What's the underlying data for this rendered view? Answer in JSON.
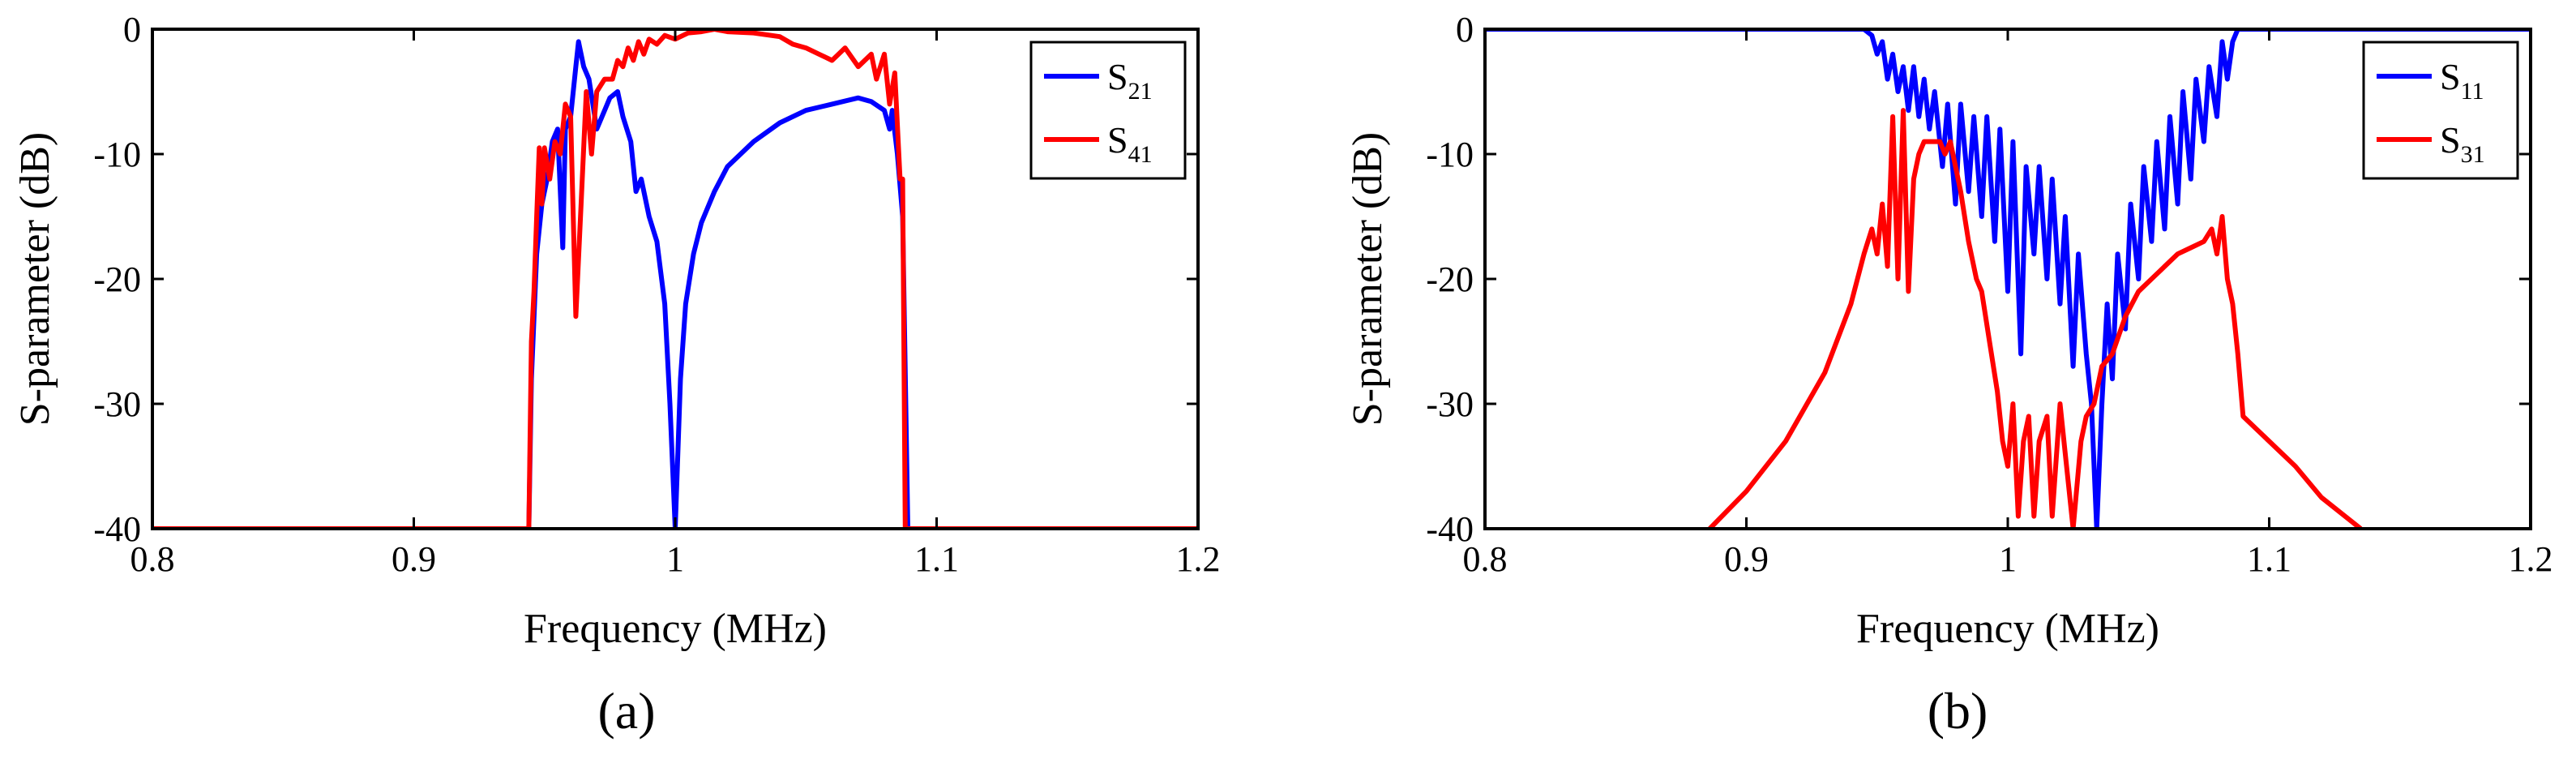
{
  "chart_data": [
    {
      "panel_label": "(a)",
      "type": "line",
      "xlabel": "Frequency (MHz)",
      "ylabel": "S-parameter (dB)",
      "xlim": [
        0.8,
        1.2
      ],
      "ylim": [
        -40,
        0
      ],
      "xticks": [
        "0.8",
        "0.9",
        "1",
        "1.1",
        "1.2"
      ],
      "yticks": [
        "0",
        "-10",
        "-20",
        "-30",
        "-40"
      ],
      "legend_position": "top-right",
      "grid": false,
      "series": [
        {
          "name": "S21",
          "name_base": "S",
          "name_sub": "21",
          "color": "#0000ff",
          "points": [
            [
              0.8,
              -40
            ],
            [
              0.944,
              -40
            ],
            [
              0.945,
              -28
            ],
            [
              0.947,
              -18
            ],
            [
              0.949,
              -14
            ],
            [
              0.951,
              -12
            ],
            [
              0.953,
              -9
            ],
            [
              0.955,
              -8
            ],
            [
              0.957,
              -17.5
            ],
            [
              0.958,
              -8
            ],
            [
              0.96,
              -7
            ],
            [
              0.962,
              -3
            ],
            [
              0.963,
              -1
            ],
            [
              0.965,
              -3
            ],
            [
              0.967,
              -4
            ],
            [
              0.97,
              -8
            ],
            [
              0.972,
              -7
            ],
            [
              0.975,
              -5.5
            ],
            [
              0.978,
              -5
            ],
            [
              0.98,
              -7
            ],
            [
              0.983,
              -9
            ],
            [
              0.985,
              -13
            ],
            [
              0.987,
              -12
            ],
            [
              0.99,
              -15
            ],
            [
              0.993,
              -17
            ],
            [
              0.996,
              -22
            ],
            [
              0.998,
              -30
            ],
            [
              1.0,
              -40
            ],
            [
              1.002,
              -28
            ],
            [
              1.004,
              -22
            ],
            [
              1.007,
              -18
            ],
            [
              1.01,
              -15.5
            ],
            [
              1.015,
              -13
            ],
            [
              1.02,
              -11
            ],
            [
              1.03,
              -9
            ],
            [
              1.04,
              -7.5
            ],
            [
              1.05,
              -6.5
            ],
            [
              1.06,
              -6
            ],
            [
              1.07,
              -5.5
            ],
            [
              1.075,
              -5.8
            ],
            [
              1.08,
              -6.5
            ],
            [
              1.082,
              -8
            ],
            [
              1.083,
              -6.5
            ],
            [
              1.085,
              -10
            ],
            [
              1.087,
              -15
            ],
            [
              1.089,
              -40
            ],
            [
              1.2,
              -40
            ]
          ]
        },
        {
          "name": "S41",
          "name_base": "S",
          "name_sub": "41",
          "color": "#ff0000",
          "points": [
            [
              0.8,
              -40
            ],
            [
              0.944,
              -40
            ],
            [
              0.945,
              -25
            ],
            [
              0.946,
              -21
            ],
            [
              0.947,
              -15
            ],
            [
              0.948,
              -9.5
            ],
            [
              0.949,
              -14
            ],
            [
              0.95,
              -9.5
            ],
            [
              0.952,
              -12
            ],
            [
              0.954,
              -9
            ],
            [
              0.956,
              -10
            ],
            [
              0.958,
              -6
            ],
            [
              0.96,
              -7
            ],
            [
              0.962,
              -23
            ],
            [
              0.964,
              -14
            ],
            [
              0.966,
              -5
            ],
            [
              0.968,
              -10
            ],
            [
              0.97,
              -5
            ],
            [
              0.973,
              -4
            ],
            [
              0.976,
              -4
            ],
            [
              0.978,
              -2.5
            ],
            [
              0.98,
              -3
            ],
            [
              0.982,
              -1.5
            ],
            [
              0.984,
              -2.5
            ],
            [
              0.986,
              -1
            ],
            [
              0.988,
              -2
            ],
            [
              0.99,
              -0.8
            ],
            [
              0.993,
              -1.2
            ],
            [
              0.996,
              -0.5
            ],
            [
              1.0,
              -0.8
            ],
            [
              1.005,
              -0.3
            ],
            [
              1.01,
              -0.2
            ],
            [
              1.015,
              0
            ],
            [
              1.02,
              -0.2
            ],
            [
              1.03,
              -0.3
            ],
            [
              1.04,
              -0.6
            ],
            [
              1.045,
              -1.2
            ],
            [
              1.05,
              -1.5
            ],
            [
              1.055,
              -2
            ],
            [
              1.06,
              -2.5
            ],
            [
              1.065,
              -1.5
            ],
            [
              1.07,
              -3
            ],
            [
              1.075,
              -2
            ],
            [
              1.077,
              -4
            ],
            [
              1.08,
              -2
            ],
            [
              1.082,
              -6
            ],
            [
              1.084,
              -3.5
            ],
            [
              1.086,
              -12
            ],
            [
              1.087,
              -12
            ],
            [
              1.088,
              -40
            ],
            [
              1.2,
              -40
            ]
          ]
        }
      ]
    },
    {
      "panel_label": "(b)",
      "type": "line",
      "xlabel": "Frequency (MHz)",
      "ylabel": "S-parameter (dB)",
      "xlim": [
        0.8,
        1.2
      ],
      "ylim": [
        -40,
        0
      ],
      "xticks": [
        "0.8",
        "0.9",
        "1",
        "1.1",
        "1.2"
      ],
      "yticks": [
        "0",
        "-10",
        "-20",
        "-30",
        "-40"
      ],
      "legend_position": "top-right",
      "grid": false,
      "series": [
        {
          "name": "S11",
          "name_base": "S",
          "name_sub": "11",
          "color": "#0000ff",
          "points": [
            [
              0.8,
              0
            ],
            [
              0.945,
              0
            ],
            [
              0.948,
              -0.5
            ],
            [
              0.95,
              -2
            ],
            [
              0.952,
              -1
            ],
            [
              0.954,
              -4
            ],
            [
              0.956,
              -2
            ],
            [
              0.958,
              -5
            ],
            [
              0.96,
              -3
            ],
            [
              0.962,
              -6.5
            ],
            [
              0.964,
              -3
            ],
            [
              0.966,
              -7
            ],
            [
              0.968,
              -4
            ],
            [
              0.97,
              -8
            ],
            [
              0.972,
              -5
            ],
            [
              0.975,
              -11
            ],
            [
              0.977,
              -6
            ],
            [
              0.98,
              -14
            ],
            [
              0.982,
              -6
            ],
            [
              0.985,
              -13
            ],
            [
              0.987,
              -7
            ],
            [
              0.99,
              -15
            ],
            [
              0.992,
              -7
            ],
            [
              0.995,
              -17
            ],
            [
              0.997,
              -8
            ],
            [
              1.0,
              -21
            ],
            [
              1.002,
              -9
            ],
            [
              1.005,
              -26
            ],
            [
              1.007,
              -11
            ],
            [
              1.01,
              -18
            ],
            [
              1.012,
              -11
            ],
            [
              1.015,
              -20
            ],
            [
              1.017,
              -12
            ],
            [
              1.02,
              -22
            ],
            [
              1.022,
              -15
            ],
            [
              1.025,
              -27
            ],
            [
              1.027,
              -18
            ],
            [
              1.03,
              -26
            ],
            [
              1.032,
              -30
            ],
            [
              1.034,
              -40
            ],
            [
              1.036,
              -30
            ],
            [
              1.038,
              -22
            ],
            [
              1.04,
              -28
            ],
            [
              1.042,
              -18
            ],
            [
              1.045,
              -24
            ],
            [
              1.047,
              -14
            ],
            [
              1.05,
              -20
            ],
            [
              1.052,
              -11
            ],
            [
              1.055,
              -17
            ],
            [
              1.057,
              -9
            ],
            [
              1.06,
              -16
            ],
            [
              1.062,
              -7
            ],
            [
              1.065,
              -14
            ],
            [
              1.067,
              -5
            ],
            [
              1.07,
              -12
            ],
            [
              1.072,
              -4
            ],
            [
              1.075,
              -9
            ],
            [
              1.077,
              -3
            ],
            [
              1.08,
              -7
            ],
            [
              1.082,
              -1
            ],
            [
              1.084,
              -4
            ],
            [
              1.086,
              -1
            ],
            [
              1.088,
              0
            ],
            [
              1.2,
              0
            ]
          ]
        },
        {
          "name": "S31",
          "name_base": "S",
          "name_sub": "31",
          "color": "#ff0000",
          "points": [
            [
              0.886,
              -40
            ],
            [
              0.9,
              -37
            ],
            [
              0.915,
              -33
            ],
            [
              0.93,
              -27.5
            ],
            [
              0.94,
              -22
            ],
            [
              0.945,
              -18
            ],
            [
              0.948,
              -16
            ],
            [
              0.95,
              -18
            ],
            [
              0.952,
              -14
            ],
            [
              0.954,
              -19
            ],
            [
              0.956,
              -7
            ],
            [
              0.958,
              -20
            ],
            [
              0.96,
              -6.5
            ],
            [
              0.962,
              -21
            ],
            [
              0.964,
              -12
            ],
            [
              0.966,
              -10
            ],
            [
              0.968,
              -9
            ],
            [
              0.97,
              -9
            ],
            [
              0.972,
              -9
            ],
            [
              0.974,
              -9
            ],
            [
              0.976,
              -10
            ],
            [
              0.978,
              -9
            ],
            [
              0.98,
              -11
            ],
            [
              0.982,
              -13
            ],
            [
              0.985,
              -17
            ],
            [
              0.988,
              -20
            ],
            [
              0.99,
              -21
            ],
            [
              0.993,
              -25
            ],
            [
              0.996,
              -29
            ],
            [
              0.998,
              -33
            ],
            [
              1.0,
              -35
            ],
            [
              1.002,
              -30
            ],
            [
              1.004,
              -39
            ],
            [
              1.006,
              -33
            ],
            [
              1.008,
              -31
            ],
            [
              1.01,
              -39
            ],
            [
              1.012,
              -33
            ],
            [
              1.015,
              -31
            ],
            [
              1.017,
              -39
            ],
            [
              1.02,
              -30
            ],
            [
              1.022,
              -34
            ],
            [
              1.025,
              -40
            ],
            [
              1.028,
              -33
            ],
            [
              1.03,
              -31
            ],
            [
              1.033,
              -30
            ],
            [
              1.036,
              -27
            ],
            [
              1.04,
              -26
            ],
            [
              1.045,
              -23
            ],
            [
              1.05,
              -21
            ],
            [
              1.055,
              -20
            ],
            [
              1.06,
              -19
            ],
            [
              1.065,
              -18
            ],
            [
              1.07,
              -17.5
            ],
            [
              1.075,
              -17
            ],
            [
              1.078,
              -16
            ],
            [
              1.08,
              -18
            ],
            [
              1.082,
              -15
            ],
            [
              1.084,
              -20
            ],
            [
              1.086,
              -22
            ],
            [
              1.088,
              -26
            ],
            [
              1.09,
              -31
            ],
            [
              1.1,
              -33
            ],
            [
              1.11,
              -35
            ],
            [
              1.12,
              -37.5
            ],
            [
              1.135,
              -40
            ]
          ]
        }
      ]
    }
  ]
}
